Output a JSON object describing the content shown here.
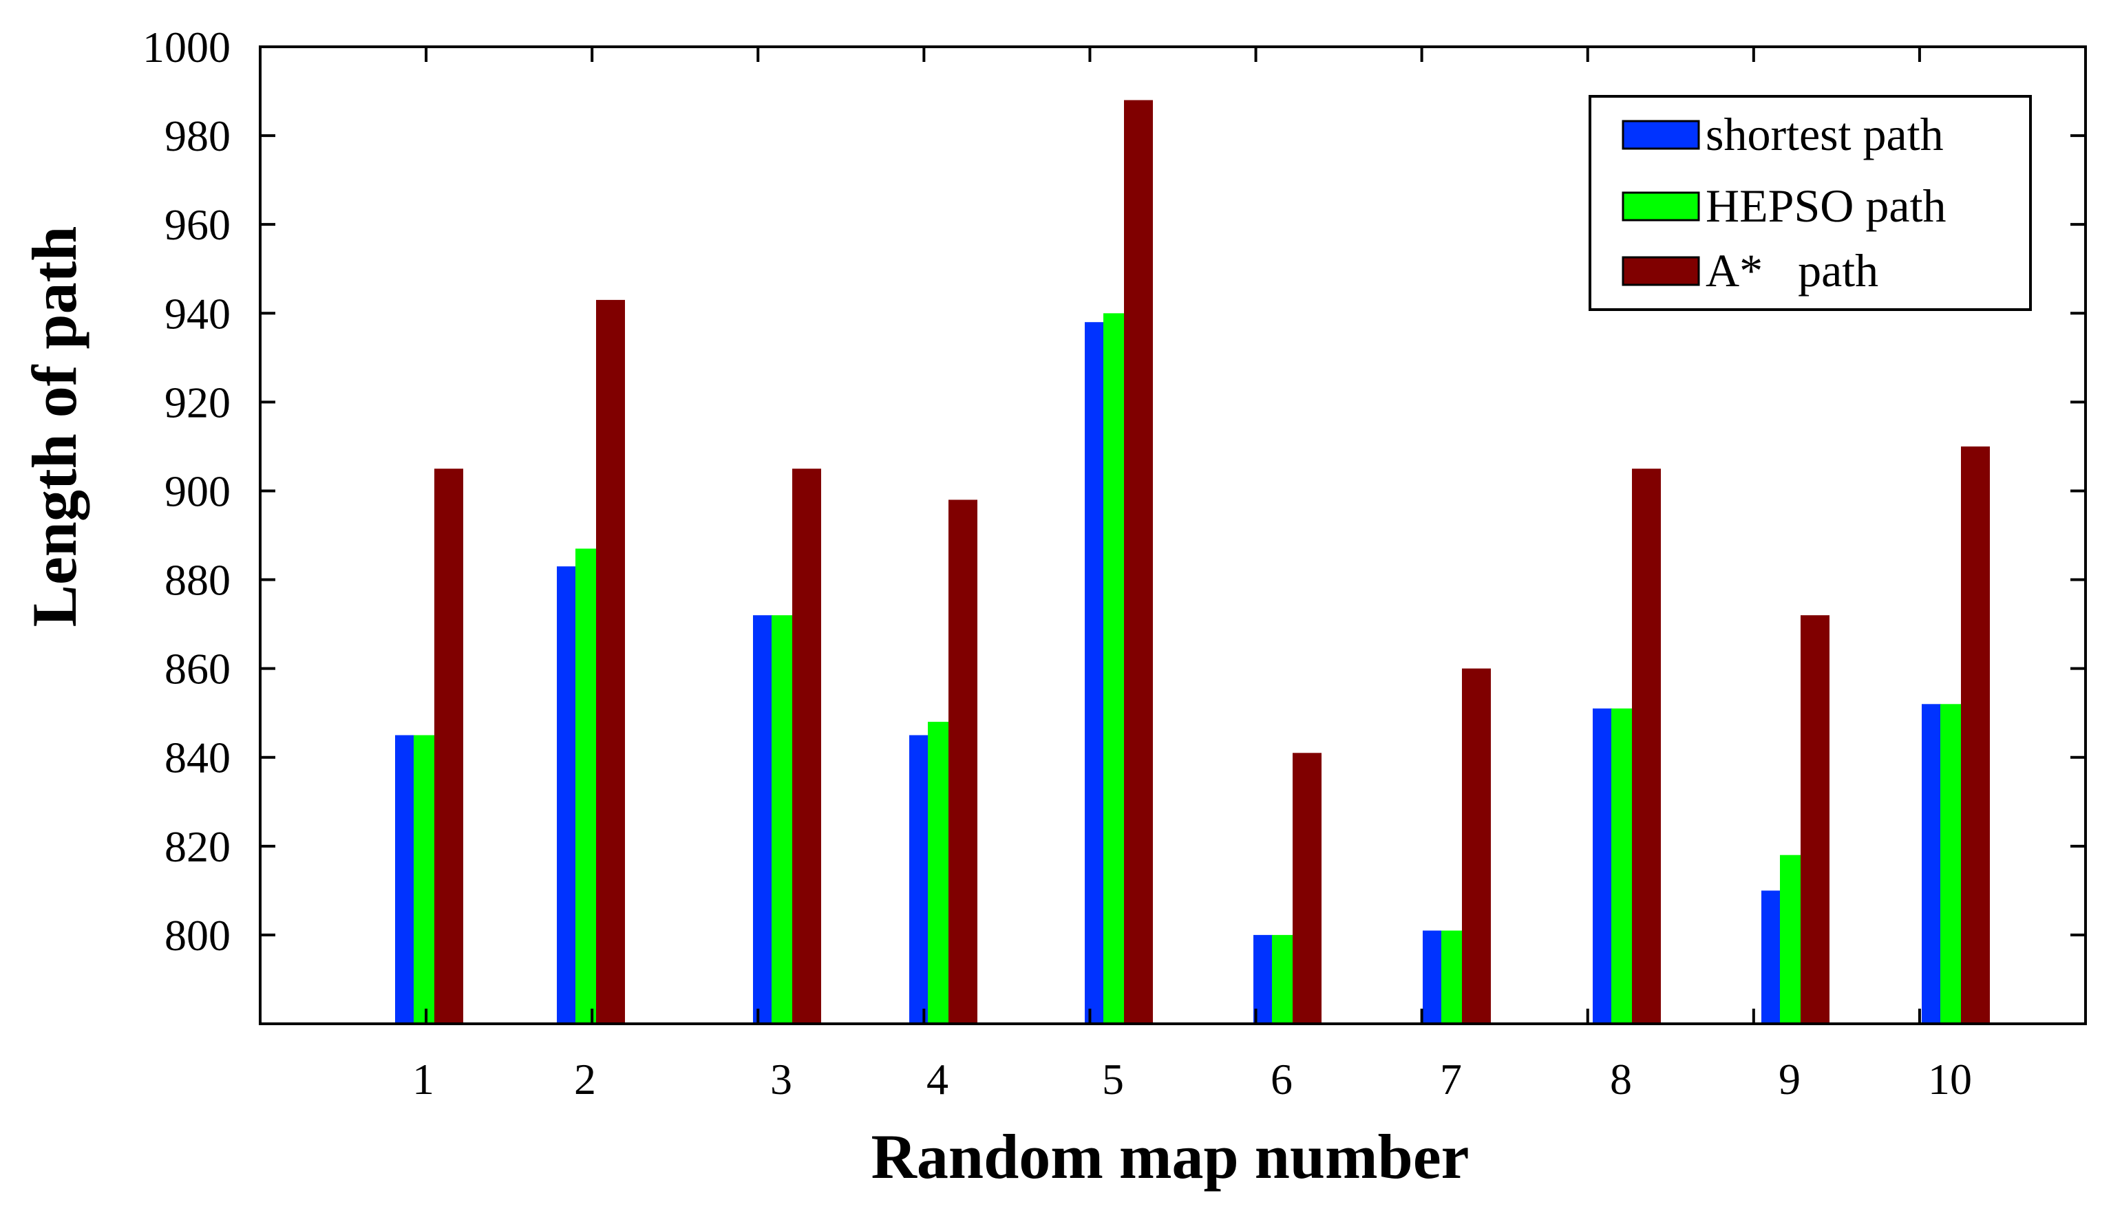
{
  "chart_data": {
    "type": "bar",
    "xlabel": "Random map number",
    "ylabel": "Length of path",
    "ylim": [
      780,
      1000
    ],
    "yticks": [
      800,
      820,
      840,
      860,
      880,
      900,
      920,
      940,
      960,
      980,
      1000
    ],
    "categories": [
      "1",
      "2",
      "3",
      "4",
      "5",
      "6",
      "7",
      "8",
      "9",
      "10"
    ],
    "series": [
      {
        "name": "shortest path",
        "color": "#0033ff",
        "values": [
          845,
          883,
          872,
          845,
          938,
          800,
          801,
          851,
          810,
          852
        ]
      },
      {
        "name": "HEPSO path",
        "color": "#00ff00",
        "values": [
          845,
          887,
          872,
          848,
          940,
          800,
          801,
          851,
          818,
          852
        ]
      },
      {
        "name": "A*   path",
        "color": "#800000",
        "values": [
          905,
          943,
          905,
          898,
          988,
          841,
          860,
          905,
          872,
          910
        ]
      }
    ],
    "grid": false,
    "legend_position": "top-right"
  }
}
